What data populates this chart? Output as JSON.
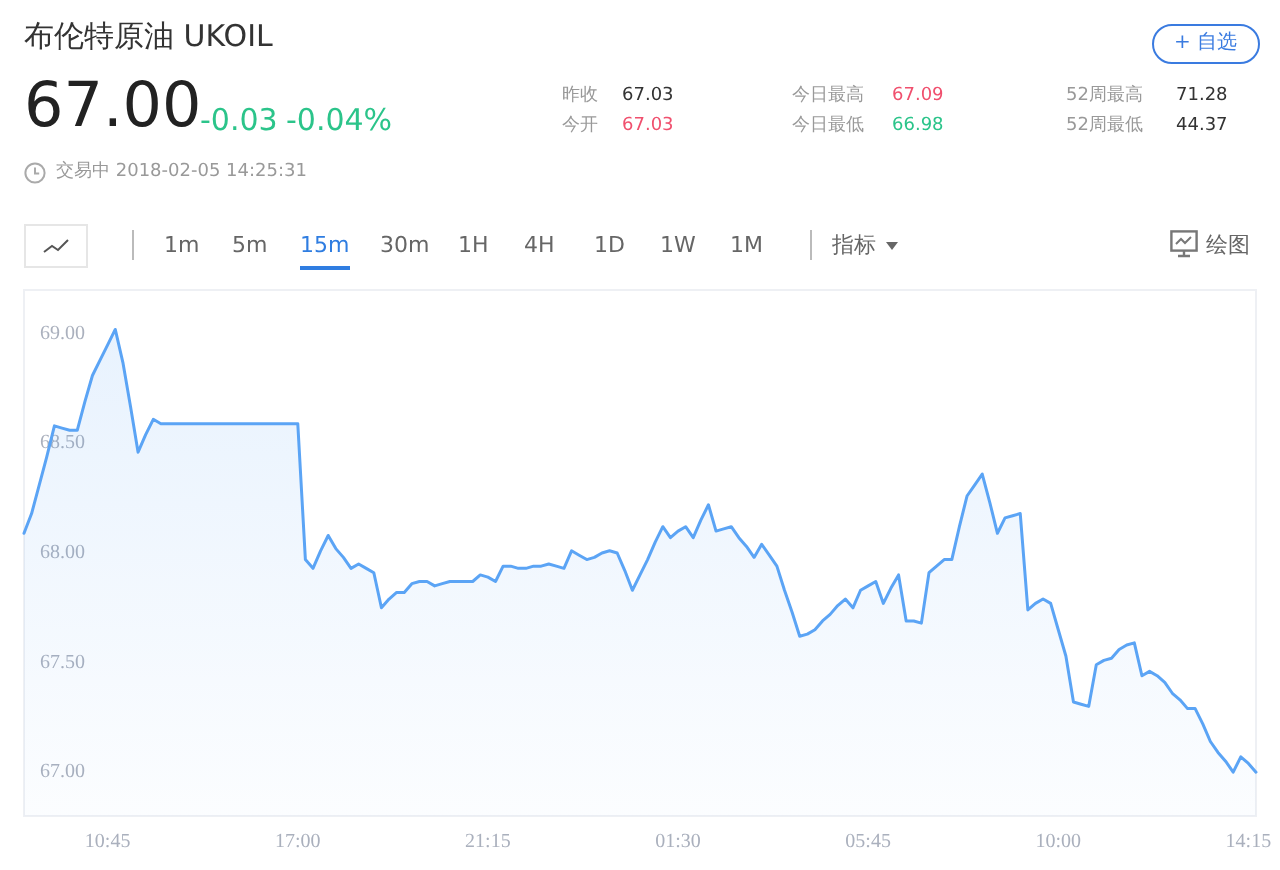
{
  "chart_data": {
    "type": "area",
    "title": "布伦特原油  UKOIL",
    "annotations": [
      "67.00",
      "-0.03",
      "-0.04%",
      "昨收",
      "67.03",
      "今开",
      "67.03",
      "今日最高",
      "67.09",
      "今日最低",
      "66.98",
      "52周最高",
      "71.28",
      "52周最低",
      "44.37",
      "交易中 2018-02-05 14:25:31",
      "+ 自选",
      "1m",
      "5m",
      "15m",
      "30m",
      "1H",
      "4H",
      "1D",
      "1W",
      "1M",
      "指标",
      "绘图"
    ],
    "marker": "none",
    "categories": [
      null,
      null,
      null,
      null,
      null,
      null,
      null,
      null,
      null,
      null,
      null,
      "10:45",
      null,
      null,
      null,
      null,
      null,
      null,
      null,
      null,
      null,
      null,
      null,
      null,
      null,
      null,
      null,
      null,
      null,
      null,
      null,
      null,
      null,
      null,
      null,
      null,
      "17:00",
      null,
      null,
      null,
      null,
      null,
      null,
      null,
      null,
      null,
      null,
      null,
      null,
      null,
      null,
      null,
      null,
      null,
      null,
      null,
      null,
      null,
      null,
      null,
      null,
      "21:15",
      null,
      null,
      null,
      null,
      null,
      null,
      null,
      null,
      null,
      null,
      null,
      null,
      null,
      null,
      null,
      null,
      null,
      null,
      null,
      null,
      null,
      null,
      null,
      null,
      "01:30",
      null,
      null,
      null,
      null,
      null,
      null,
      null,
      null,
      null,
      null,
      null,
      null,
      null,
      null,
      null,
      null,
      null,
      null,
      null,
      null,
      null,
      null,
      null,
      null,
      "05:45",
      null,
      null,
      null,
      null,
      null,
      null,
      null,
      null,
      null,
      null,
      null,
      null,
      null,
      null,
      null,
      null,
      null,
      null,
      null,
      null,
      null,
      null,
      null,
      null,
      "10:00",
      null,
      null,
      null,
      null,
      null,
      null,
      null,
      null,
      null,
      null,
      null,
      null,
      null,
      null,
      null,
      null,
      null,
      null,
      null,
      null,
      null,
      null,
      null,
      null,
      "14:15",
      null
    ],
    "ylim": [
      66.8,
      69.2
    ],
    "yticks": [
      {
        "value": 67,
        "label": "67.00"
      },
      {
        "value": 67.5,
        "label": "67.50"
      },
      {
        "value": 68,
        "label": "68.00"
      },
      {
        "value": 68.5,
        "label": "68.50"
      },
      {
        "value": 69,
        "label": "69.00"
      }
    ],
    "series": [
      {
        "color": "#5ba4f5",
        "values": [
          68.09,
          68.18,
          68.31,
          68.44,
          68.58,
          68.57,
          68.56,
          68.56,
          68.69,
          68.81,
          68.88,
          68.95,
          69.02,
          68.87,
          68.67,
          68.46,
          68.54,
          68.61,
          68.59,
          68.59,
          68.59,
          68.59,
          68.59,
          68.59,
          68.59,
          68.59,
          68.59,
          68.59,
          68.59,
          68.59,
          68.59,
          68.59,
          68.59,
          68.59,
          68.59,
          68.59,
          68.59,
          67.97,
          67.93,
          68.01,
          68.08,
          68.02,
          67.98,
          67.93,
          67.95,
          67.93,
          67.91,
          67.75,
          67.79,
          67.82,
          67.82,
          67.86,
          67.87,
          67.87,
          67.85,
          67.86,
          67.87,
          67.87,
          67.87,
          67.87,
          67.9,
          67.89,
          67.87,
          67.94,
          67.94,
          67.93,
          67.93,
          67.94,
          67.94,
          67.95,
          67.94,
          67.93,
          68.01,
          67.99,
          67.97,
          67.98,
          68.0,
          68.01,
          68.0,
          67.92,
          67.83,
          67.9,
          67.97,
          68.05,
          68.12,
          68.07,
          68.1,
          68.12,
          68.07,
          68.15,
          68.22,
          68.1,
          68.11,
          68.12,
          68.07,
          68.03,
          67.98,
          68.04,
          67.99,
          67.94,
          67.83,
          67.73,
          67.62,
          67.63,
          67.65,
          67.69,
          67.72,
          67.76,
          67.79,
          67.75,
          67.83,
          67.85,
          67.87,
          67.77,
          67.84,
          67.9,
          67.69,
          67.69,
          67.68,
          67.91,
          67.94,
          67.97,
          67.97,
          68.12,
          68.26,
          68.31,
          68.36,
          68.23,
          68.09,
          68.16,
          68.17,
          68.18,
          67.74,
          67.77,
          67.79,
          67.77,
          67.65,
          67.53,
          67.32,
          67.31,
          67.3,
          67.49,
          67.51,
          67.52,
          67.56,
          67.58,
          67.59,
          67.44,
          67.46,
          67.44,
          67.41,
          67.36,
          67.33,
          67.29,
          67.29,
          67.22,
          67.14,
          67.09,
          67.05,
          67.0,
          67.07,
          67.04,
          67.0
        ]
      }
    ]
  }
}
